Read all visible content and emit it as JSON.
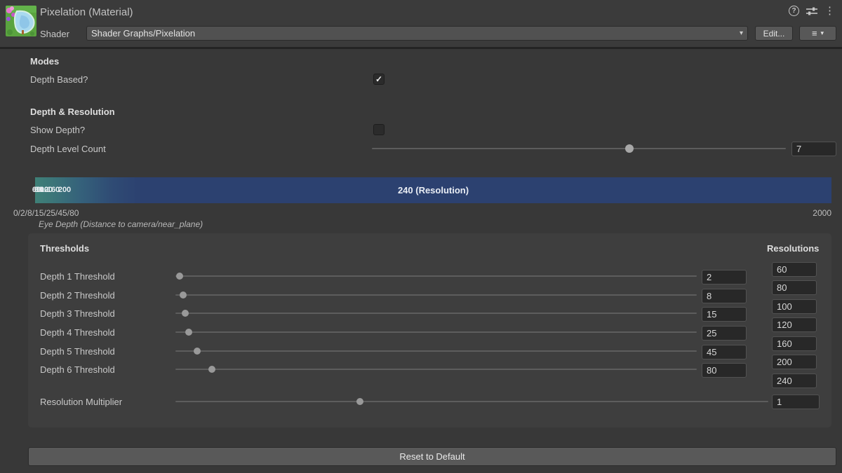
{
  "header": {
    "title": "Pixelation (Material)",
    "shader_label": "Shader",
    "shader_value": "Shader Graphs/Pixelation",
    "edit_button": "Edit...",
    "help_glyph": "?",
    "kebab_glyph": "⋮",
    "list_glyph": "≡",
    "arrow_glyph": "▾"
  },
  "modes": {
    "section": "Modes",
    "depth_based_label": "Depth Based?",
    "depth_based_check": "✓"
  },
  "depth_resolution": {
    "section": "Depth & Resolution",
    "show_depth_label": "Show Depth?",
    "depth_level_count_label": "Depth Level Count",
    "depth_level_count_value": "7",
    "depth_level_count_percent": 62.2
  },
  "depth_bar": {
    "overlapped_labels": [
      "60",
      "80",
      "100",
      "120",
      "160",
      "200"
    ],
    "main_label": "240 (Resolution)",
    "min_label": "0/2/8/15/25/45/80",
    "max_label": "2000",
    "axis_caption": "Eye Depth (Distance to camera/near_plane)",
    "teal_color": "#3f8077",
    "navy_color": "#2c4170"
  },
  "thresholds": {
    "section": "Thresholds",
    "rows": [
      {
        "label": "Depth 1 Threshold",
        "value": "2",
        "percent": 0.8
      },
      {
        "label": "Depth 2 Threshold",
        "value": "8",
        "percent": 1.5
      },
      {
        "label": "Depth 3 Threshold",
        "value": "15",
        "percent": 1.9
      },
      {
        "label": "Depth 4 Threshold",
        "value": "25",
        "percent": 2.6
      },
      {
        "label": "Depth 5 Threshold",
        "value": "45",
        "percent": 4.2
      },
      {
        "label": "Depth 6 Threshold",
        "value": "80",
        "percent": 7.0
      }
    ],
    "multiplier": {
      "label": "Resolution Multiplier",
      "value": "1",
      "percent": 31.1
    }
  },
  "resolutions": {
    "section": "Resolutions",
    "values": [
      "60",
      "80",
      "100",
      "120",
      "160",
      "200",
      "240"
    ]
  },
  "footer": {
    "reset_button": "Reset to Default"
  }
}
